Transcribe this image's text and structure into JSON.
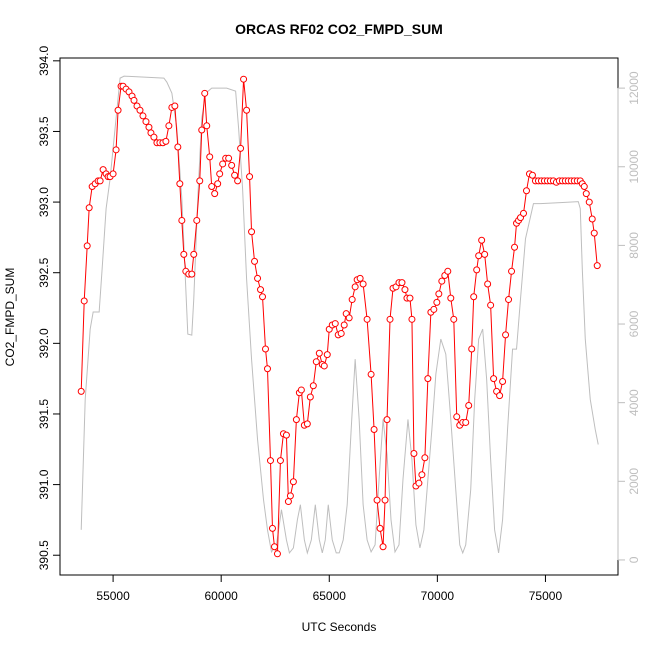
{
  "chart_data": {
    "type": "line",
    "title": "ORCAS RF02 CO2_FMPD_SUM",
    "xlabel": "UTC Seconds",
    "ylabel": "CO2_FMPD_SUM",
    "xlim": [
      52544,
      78356
    ],
    "ylim": [
      390.36,
      394.02
    ],
    "y2lim": [
      -383,
      12766
    ],
    "xticks": [
      55000,
      60000,
      65000,
      70000,
      75000
    ],
    "yticks": [
      390.5,
      {
        "value": 391,
        "label": "391.0"
      },
      391.5,
      {
        "value": 392,
        "label": "392.0"
      },
      392.5,
      {
        "value": 393,
        "label": "393.0"
      },
      393.5,
      {
        "value": 394,
        "label": "394.0"
      }
    ],
    "y2ticks": [
      0,
      2000,
      4000,
      6000,
      8000,
      10000,
      12000
    ],
    "series": [
      {
        "color": "#ff0000",
        "marker": "circle",
        "x": [
          53525,
          53664,
          53802,
          53894,
          54032,
          54171,
          54309,
          54401,
          54539,
          54677,
          54770,
          54862,
          55000,
          55138,
          55230,
          55369,
          55461,
          55599,
          55737,
          55876,
          55968,
          56106,
          56244,
          56382,
          56521,
          56659,
          56751,
          56889,
          57028,
          57166,
          57304,
          57442,
          57580,
          57719,
          57857,
          57995,
          58087,
          58180,
          58272,
          58364,
          58502,
          58640,
          58732,
          58871,
          59009,
          59101,
          59239,
          59332,
          59470,
          59562,
          59700,
          59838,
          59931,
          60069,
          60207,
          60345,
          60484,
          60622,
          60760,
          60898,
          61036,
          61175,
          61313,
          61405,
          61543,
          61682,
          61820,
          61912,
          62050,
          62142,
          62281,
          62373,
          62465,
          62603,
          62741,
          62880,
          63018,
          63110,
          63202,
          63340,
          63479,
          63617,
          63709,
          63847,
          63985,
          64124,
          64262,
          64400,
          64539,
          64677,
          64769,
          64907,
          64999,
          65138,
          65276,
          65414,
          65552,
          65691,
          65783,
          65921,
          66059,
          66197,
          66290,
          66428,
          66566,
          66750,
          66935,
          67073,
          67211,
          67349,
          67488,
          67580,
          67672,
          67810,
          67949,
          68087,
          68225,
          68363,
          68501,
          68594,
          68732,
          68824,
          68916,
          69008,
          69147,
          69285,
          69423,
          69561,
          69700,
          69838,
          69976,
          70068,
          70206,
          70344,
          70483,
          70621,
          70759,
          70897,
          71036,
          71174,
          71312,
          71450,
          71589,
          71681,
          71819,
          71911,
          72049,
          72188,
          72326,
          72464,
          72602,
          72740,
          72879,
          73017,
          73155,
          73293,
          73432,
          73570,
          73662,
          73754,
          73846,
          73985,
          74123,
          74261,
          74399,
          74537,
          74676,
          74814,
          74952,
          75090,
          75229,
          75367,
          75505,
          75643,
          75782,
          75920,
          76058,
          76196,
          76334,
          76473,
          76611,
          76704,
          76796,
          76888,
          77026,
          77164,
          77257,
          77395
        ],
        "values": [
          391.66,
          392.3,
          392.69,
          392.96,
          393.11,
          393.13,
          393.15,
          393.15,
          393.23,
          393.2,
          393.18,
          393.18,
          393.2,
          393.37,
          393.65,
          393.82,
          393.82,
          393.8,
          393.78,
          393.75,
          393.72,
          393.68,
          393.65,
          393.61,
          393.57,
          393.53,
          393.49,
          393.46,
          393.42,
          393.42,
          393.42,
          393.43,
          393.54,
          393.67,
          393.68,
          393.39,
          393.13,
          392.87,
          392.63,
          392.51,
          392.49,
          392.49,
          392.63,
          392.87,
          393.15,
          393.51,
          393.77,
          393.54,
          393.32,
          393.11,
          393.06,
          393.13,
          393.2,
          393.27,
          393.31,
          393.31,
          393.26,
          393.19,
          393.15,
          393.38,
          393.87,
          393.65,
          393.18,
          392.79,
          392.58,
          392.46,
          392.38,
          392.33,
          391.96,
          391.82,
          391.17,
          390.69,
          390.56,
          390.51,
          391.17,
          391.36,
          391.35,
          390.88,
          390.92,
          391.02,
          391.46,
          391.65,
          391.67,
          391.42,
          391.43,
          391.62,
          391.7,
          391.87,
          391.93,
          391.85,
          391.84,
          391.92,
          392.1,
          392.13,
          392.14,
          392.06,
          392.07,
          392.13,
          392.21,
          392.18,
          392.31,
          392.4,
          392.45,
          392.46,
          392.42,
          392.17,
          391.78,
          391.39,
          390.89,
          390.69,
          390.56,
          390.89,
          391.46,
          392.17,
          392.39,
          392.4,
          392.43,
          392.43,
          392.38,
          392.32,
          392.32,
          392.17,
          391.22,
          390.99,
          391.01,
          391.07,
          391.19,
          391.75,
          392.22,
          392.24,
          392.29,
          392.35,
          392.44,
          392.48,
          392.51,
          392.32,
          392.17,
          391.48,
          391.42,
          391.44,
          391.44,
          391.56,
          391.96,
          392.33,
          392.52,
          392.62,
          392.73,
          392.63,
          392.42,
          392.27,
          391.75,
          391.66,
          391.63,
          391.73,
          392.06,
          392.31,
          392.51,
          392.68,
          392.85,
          392.87,
          392.89,
          392.92,
          393.08,
          393.2,
          393.19,
          393.15,
          393.15,
          393.15,
          393.15,
          393.15,
          393.15,
          393.15,
          393.14,
          393.15,
          393.15,
          393.15,
          393.15,
          393.15,
          393.15,
          393.15,
          393.15,
          393.13,
          393.11,
          393.06,
          393.0,
          392.88,
          392.78,
          392.55
        ]
      },
      {
        "color": "#bebebe",
        "axis": "y2",
        "x": [
          53525,
          53710,
          53940,
          54078,
          54355,
          54493,
          54677,
          54862,
          55046,
          55323,
          55507,
          57350,
          57488,
          57719,
          57949,
          58180,
          58364,
          58456,
          58640,
          58732,
          58917,
          59101,
          59286,
          59562,
          59792,
          60253,
          60668,
          60806,
          60990,
          61175,
          61405,
          61682,
          61958,
          62142,
          62327,
          62557,
          62788,
          63018,
          63156,
          63340,
          63525,
          63663,
          63847,
          63985,
          64170,
          64354,
          64539,
          64677,
          64815,
          64953,
          65138,
          65322,
          65460,
          65645,
          65829,
          66013,
          66197,
          66382,
          66566,
          66750,
          66935,
          67119,
          67303,
          67488,
          67672,
          67856,
          68040,
          68225,
          68409,
          68640,
          68824,
          69008,
          69193,
          69377,
          69561,
          69746,
          69930,
          70160,
          70390,
          70621,
          70851,
          71036,
          71174,
          71312,
          71543,
          71727,
          71911,
          72096,
          72280,
          72464,
          72648,
          72833,
          73017,
          73247,
          73478,
          73662,
          73846,
          74077,
          74445,
          74768,
          75690,
          76519,
          76611,
          76704,
          76842,
          77072,
          77303,
          77441
        ],
        "values": [
          766,
          4085,
          5872,
          6306,
          6306,
          7404,
          8936,
          9701,
          10723,
          12254,
          12305,
          12254,
          12152,
          11871,
          10978,
          9191,
          6893,
          5744,
          5719,
          6638,
          9191,
          11233,
          11871,
          11999,
          11999,
          11999,
          11923,
          10978,
          9446,
          7148,
          5106,
          3064,
          1532,
          766,
          204,
          383,
          1277,
          511,
          179,
          306,
          1021,
          1404,
          511,
          179,
          511,
          1404,
          511,
          179,
          511,
          1404,
          511,
          179,
          179,
          511,
          1404,
          3319,
          5106,
          3574,
          1404,
          511,
          204,
          383,
          2042,
          3574,
          2681,
          1021,
          204,
          383,
          2042,
          3574,
          2553,
          894,
          306,
          766,
          2042,
          3319,
          4723,
          5617,
          5234,
          3574,
          1787,
          383,
          179,
          383,
          1787,
          4085,
          5617,
          5872,
          4595,
          2553,
          766,
          179,
          1021,
          3319,
          5361,
          5361,
          6638,
          8170,
          9063,
          9063,
          9089,
          9114,
          8936,
          7404,
          5617,
          4085,
          3319,
          2936
        ]
      }
    ]
  }
}
